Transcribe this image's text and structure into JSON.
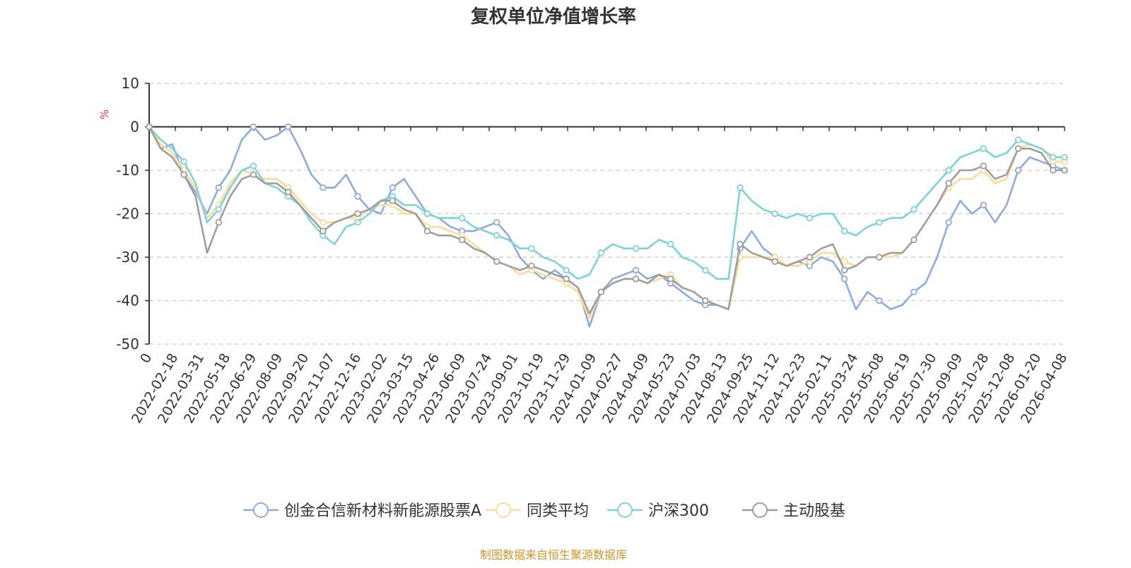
{
  "chart_data": {
    "type": "line",
    "title": "复权单位净值增长率",
    "ylabel": "%",
    "xlabel": "",
    "ylim": [
      -50,
      10
    ],
    "yticks": [
      10,
      0,
      -10,
      -20,
      -30,
      -40,
      -50
    ],
    "grid": true,
    "legend_position": "bottom",
    "source_note": "制图数据来自恒生聚源数据库",
    "x_tick_labels": [
      "0",
      "2022-02-18",
      "2022-03-31",
      "2022-05-18",
      "2022-06-29",
      "2022-08-09",
      "2022-09-20",
      "2022-11-07",
      "2022-12-16",
      "2023-02-02",
      "2023-03-15",
      "2023-04-26",
      "2023-06-09",
      "2023-07-24",
      "2023-09-01",
      "2023-10-19",
      "2023-11-29",
      "2024-01-09",
      "2024-02-27",
      "2024-04-09",
      "2024-05-23",
      "2024-07-03",
      "2024-08-13",
      "2024-09-25",
      "2024-11-12",
      "2024-12-23",
      "2025-02-11",
      "2025-03-24",
      "2025-05-08",
      "2025-06-19",
      "2025-07-30",
      "2025-09-09",
      "2025-10-28",
      "2025-12-08",
      "2026-01-20",
      "2026-04-08"
    ],
    "series": [
      {
        "name": "创金合信新材料新能源股票A",
        "color": "#8fabdb",
        "values": [
          0,
          -5,
          -4,
          -11,
          -15,
          -20,
          -14,
          -10,
          -3,
          0,
          -3,
          -2,
          0,
          -5,
          -11,
          -14,
          -14,
          -11,
          -16,
          -19,
          -20,
          -14,
          -12,
          -16,
          -20,
          -21,
          -23,
          -24,
          -24,
          -23,
          -22,
          -25,
          -30,
          -33,
          -35,
          -33,
          -35,
          -37,
          -46,
          -38,
          -35,
          -34,
          -33,
          -35,
          -34,
          -36,
          -38,
          -40,
          -41,
          -41,
          -42,
          -28,
          -24,
          -28,
          -30,
          -32,
          -31,
          -32,
          -30,
          -31,
          -35,
          -42,
          -38,
          -40,
          -42,
          -41,
          -38,
          -36,
          -30,
          -22,
          -17,
          -20,
          -18,
          -22,
          -18,
          -10,
          -7,
          -8,
          -9,
          -10
        ]
      },
      {
        "name": "同类平均",
        "color": "#fdd99b",
        "values": [
          0,
          -4,
          -6,
          -10,
          -14,
          -21,
          -18,
          -13,
          -10,
          -11,
          -12,
          -12,
          -14,
          -17,
          -20,
          -22,
          -22,
          -21,
          -21,
          -19,
          -18,
          -18,
          -20,
          -20,
          -23,
          -23,
          -24,
          -25,
          -27,
          -29,
          -31,
          -32,
          -34,
          -33,
          -34,
          -35,
          -36,
          -38,
          -44,
          -38,
          -36,
          -35,
          -35,
          -36,
          -35,
          -34,
          -37,
          -38,
          -40,
          -41,
          -42,
          -30,
          -30,
          -30,
          -30,
          -32,
          -32,
          -31,
          -29,
          -29,
          -31,
          -32,
          -30,
          -30,
          -30,
          -29,
          -26,
          -22,
          -18,
          -14,
          -12,
          -12,
          -10,
          -13,
          -12,
          -5,
          -4,
          -5,
          -8,
          -8
        ]
      },
      {
        "name": "沪深300",
        "color": "#7dd3d6",
        "values": [
          0,
          -3,
          -5,
          -8,
          -13,
          -22,
          -19,
          -14,
          -10,
          -9,
          -13,
          -14,
          -16,
          -18,
          -22,
          -25,
          -27,
          -23,
          -22,
          -20,
          -17,
          -16,
          -18,
          -18,
          -20,
          -21,
          -21,
          -21,
          -23,
          -24,
          -25,
          -26,
          -28,
          -28,
          -30,
          -31,
          -33,
          -35,
          -34,
          -29,
          -27,
          -28,
          -28,
          -28,
          -26,
          -27,
          -30,
          -31,
          -33,
          -35,
          -35,
          -14,
          -17,
          -19,
          -20,
          -21,
          -20,
          -21,
          -20,
          -20,
          -24,
          -25,
          -23,
          -22,
          -21,
          -21,
          -19,
          -16,
          -13,
          -10,
          -7,
          -6,
          -5,
          -7,
          -6,
          -3,
          -4,
          -5,
          -7,
          -7
        ]
      },
      {
        "name": "主动股基",
        "color": "#9e9e9e",
        "values": [
          0,
          -5,
          -7,
          -11,
          -16,
          -29,
          -22,
          -16,
          -12,
          -11,
          -13,
          -13,
          -15,
          -18,
          -21,
          -24,
          -22,
          -21,
          -20,
          -19,
          -17,
          -17,
          -19,
          -20,
          -24,
          -25,
          -25,
          -26,
          -28,
          -29,
          -31,
          -32,
          -33,
          -32,
          -33,
          -34,
          -35,
          -37,
          -43,
          -38,
          -36,
          -35,
          -35,
          -36,
          -34,
          -35,
          -37,
          -38,
          -40,
          -41,
          -42,
          -27,
          -29,
          -30,
          -31,
          -32,
          -31,
          -30,
          -28,
          -27,
          -33,
          -32,
          -30,
          -30,
          -29,
          -29,
          -26,
          -22,
          -18,
          -13,
          -10,
          -10,
          -9,
          -12,
          -11,
          -5,
          -5,
          -6,
          -10,
          -10
        ]
      }
    ]
  }
}
